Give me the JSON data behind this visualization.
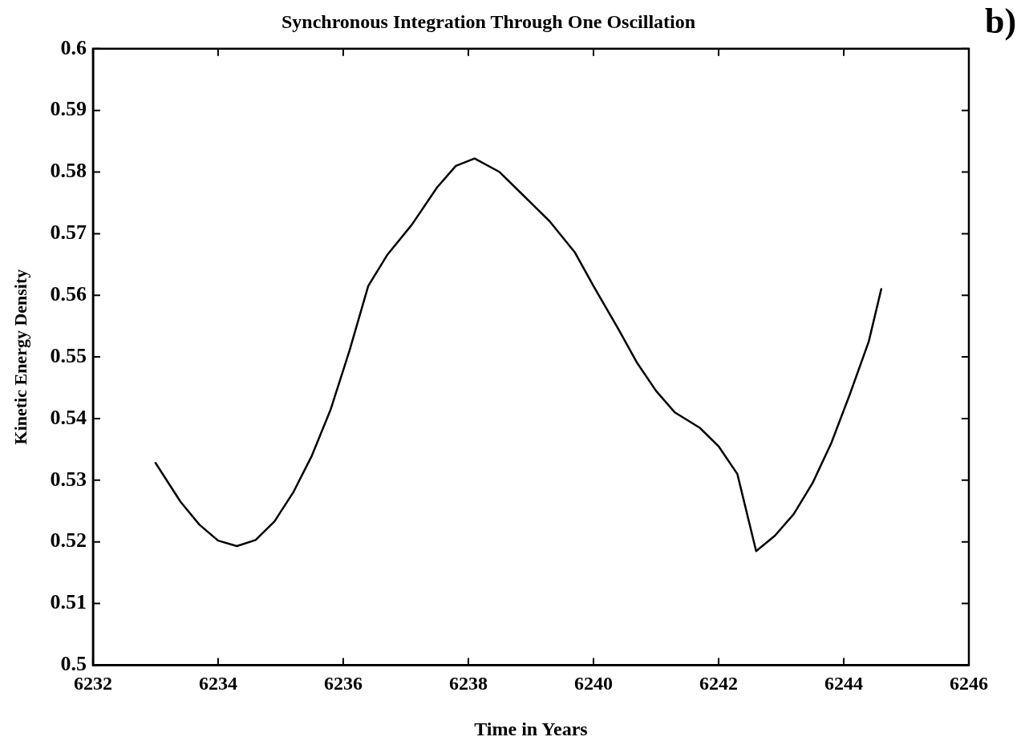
{
  "chart_data": {
    "type": "line",
    "title": "Synchronous Integration Through One Oscillation",
    "xlabel": "Time in Years",
    "ylabel": "Kinetic Energy Density",
    "annotations": [
      "b)"
    ],
    "xlim": [
      6232,
      6246
    ],
    "xticks": [
      6232,
      6234,
      6236,
      6238,
      6240,
      6242,
      6244,
      6246
    ],
    "ylim": [
      0.5,
      0.6
    ],
    "yticks": [
      0.5,
      0.51,
      0.52,
      0.53,
      0.54,
      0.55,
      0.56,
      0.57,
      0.58,
      0.59,
      0.6
    ],
    "grid": false,
    "legend": false,
    "marker": "none",
    "line_style": "solid",
    "series": [
      {
        "color": "#000000",
        "x": [
          6233.0,
          6233.4,
          6233.7,
          6234.0,
          6234.3,
          6234.6,
          6234.9,
          6235.2,
          6235.5,
          6235.8,
          6236.1,
          6236.4,
          6236.7,
          6237.1,
          6237.5,
          6237.8,
          6238.1,
          6238.5,
          6238.9,
          6239.3,
          6239.7,
          6240.0,
          6240.4,
          6240.7,
          6241.0,
          6241.3,
          6241.7,
          6242.0,
          6242.3,
          6242.6,
          6242.9,
          6243.2,
          6243.5,
          6243.8,
          6244.1,
          6244.4,
          6244.6
        ],
        "values": [
          0.5328,
          0.5265,
          0.5228,
          0.5202,
          0.5193,
          0.5203,
          0.5233,
          0.528,
          0.534,
          0.5415,
          0.551,
          0.5615,
          0.5665,
          0.5715,
          0.5775,
          0.581,
          0.5822,
          0.58,
          0.576,
          0.572,
          0.567,
          0.5615,
          0.5545,
          0.549,
          0.5445,
          0.541,
          0.5385,
          0.5355,
          0.531,
          0.5185,
          0.521,
          0.5245,
          0.5295,
          0.536,
          0.544,
          0.5525,
          0.561
        ]
      }
    ]
  }
}
